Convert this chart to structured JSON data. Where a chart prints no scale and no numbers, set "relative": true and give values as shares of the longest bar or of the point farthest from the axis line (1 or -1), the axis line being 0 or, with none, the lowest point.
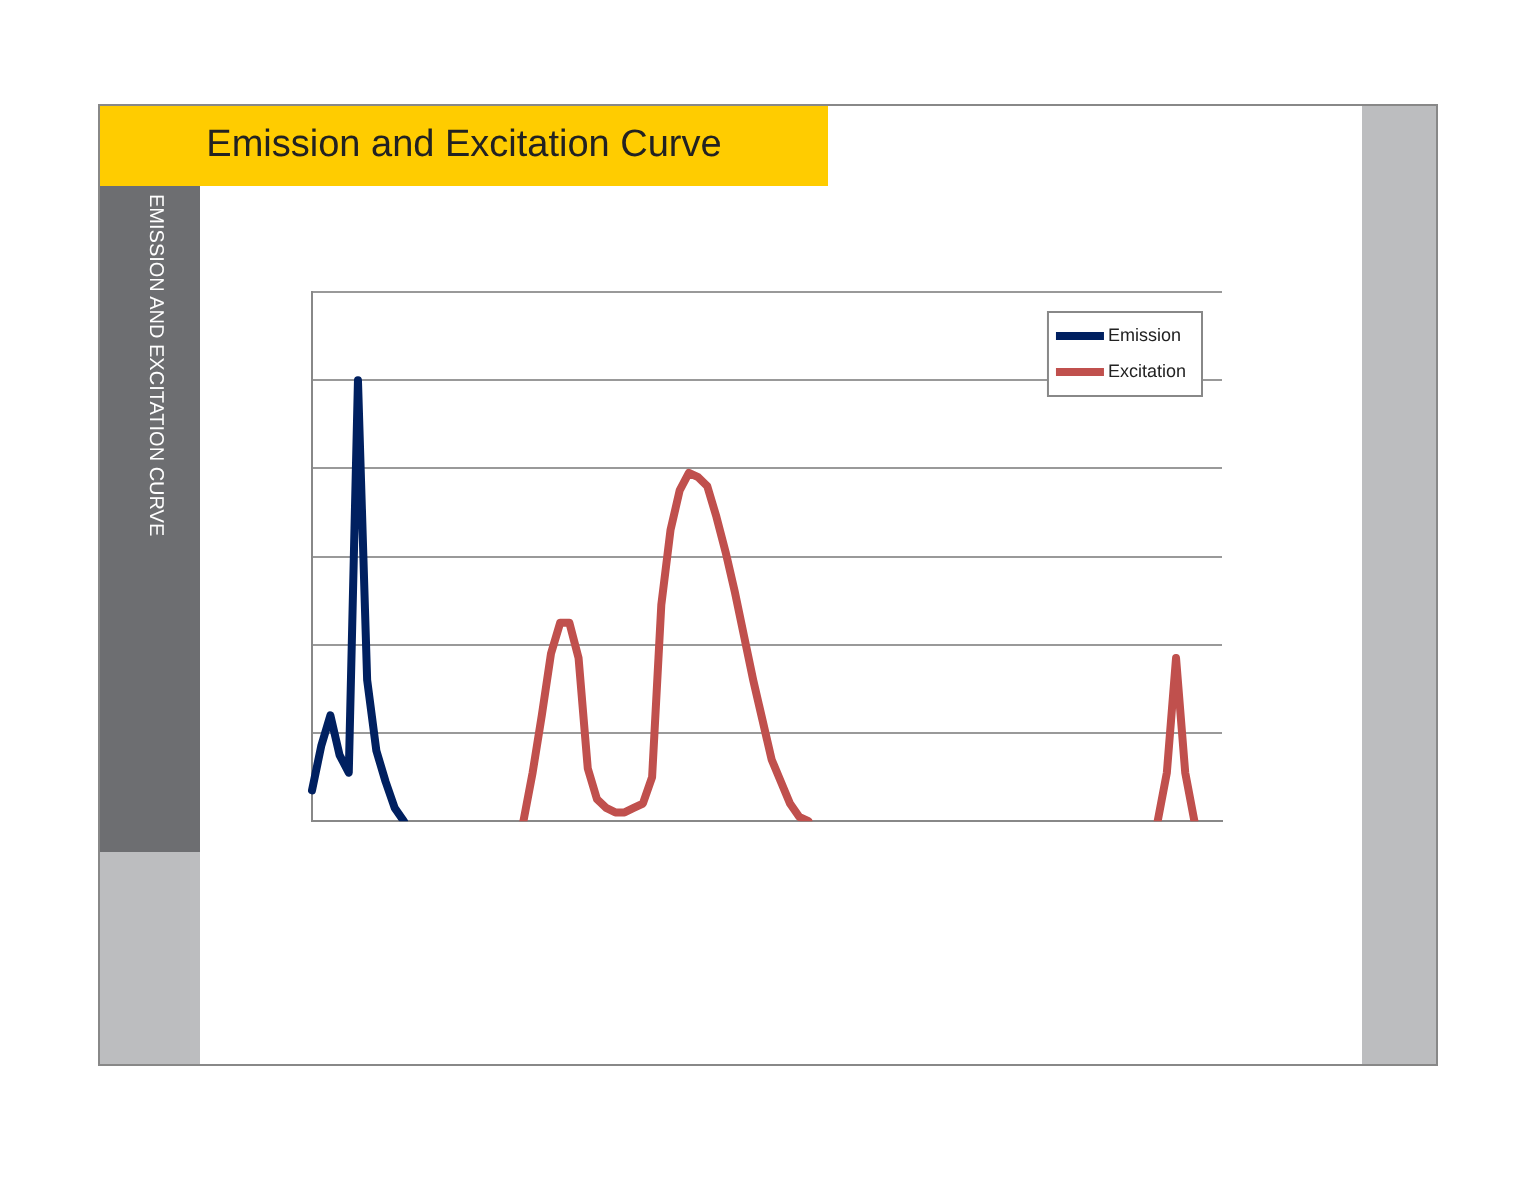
{
  "chart_data": {
    "type": "line",
    "title": "Emission and Excitation Curve",
    "annotations": [
      "EMISSION AND EXCITATION CURVE"
    ],
    "relative": true,
    "grid": "y",
    "legend": "top right",
    "marker": "none",
    "line_style": "solid",
    "categories": [
      null,
      null,
      null,
      null,
      null,
      null,
      null,
      null,
      null,
      null,
      null,
      null,
      null,
      null,
      null,
      null,
      null,
      null,
      null,
      null,
      null,
      null,
      null,
      null,
      null,
      null,
      null,
      null,
      null,
      null,
      null,
      null,
      null,
      null,
      null,
      null,
      null,
      null,
      null,
      null,
      null,
      null,
      null,
      null,
      null,
      null,
      null,
      null,
      null,
      null,
      null,
      null,
      null,
      null,
      null,
      null,
      null,
      null,
      null,
      null,
      null,
      null,
      null,
      null,
      null,
      null,
      null,
      null,
      null,
      null,
      null,
      null,
      null,
      null,
      null,
      null,
      null,
      null,
      null,
      null,
      null,
      null,
      null,
      null,
      null,
      null,
      null,
      null,
      null,
      null,
      null,
      null,
      null,
      null,
      null,
      null,
      null,
      null,
      null,
      null
    ],
    "series": [
      {
        "name": "Emission",
        "color": "#002060",
        "values": [
          0.07,
          0.17,
          0.24,
          0.15,
          0.11,
          1.0,
          0.32,
          0.16,
          0.09,
          0.03,
          0,
          null,
          null,
          null,
          null,
          null,
          null,
          null,
          null,
          null,
          null,
          null,
          null,
          null,
          null,
          null,
          null,
          null,
          null,
          null,
          null,
          null,
          null,
          null,
          null,
          null,
          null,
          null,
          null,
          null,
          null,
          null,
          null,
          null,
          null,
          null,
          null,
          null,
          null,
          null,
          null,
          null,
          null,
          null,
          null,
          null,
          null,
          null,
          null,
          null,
          null,
          null,
          null,
          null,
          null,
          null,
          null,
          null,
          null,
          null,
          null,
          null,
          null,
          null,
          null,
          null,
          null,
          null,
          null,
          null,
          null,
          null,
          null,
          null,
          null,
          null,
          null,
          null,
          null,
          null,
          null,
          null,
          null,
          null,
          null,
          null,
          null,
          null,
          null,
          null
        ]
      },
      {
        "name": "Excitation",
        "color": "#c0504d",
        "values": [
          null,
          null,
          null,
          null,
          null,
          null,
          null,
          null,
          null,
          null,
          null,
          null,
          null,
          null,
          null,
          null,
          null,
          null,
          null,
          null,
          null,
          null,
          null,
          0,
          0.11,
          0.24,
          0.38,
          0.45,
          0.45,
          0.37,
          0.12,
          0.05,
          0.03,
          0.02,
          0.02,
          0.03,
          0.04,
          0.1,
          0.49,
          0.66,
          0.75,
          0.79,
          0.78,
          0.76,
          0.69,
          0.61,
          0.52,
          0.42,
          0.32,
          0.23,
          0.14,
          0.09,
          0.04,
          0.01,
          0,
          null,
          null,
          null,
          null,
          null,
          null,
          null,
          null,
          null,
          null,
          null,
          null,
          null,
          null,
          null,
          null,
          null,
          null,
          null,
          null,
          null,
          null,
          null,
          null,
          null,
          null,
          null,
          null,
          null,
          null,
          null,
          null,
          null,
          null,
          null,
          null,
          null,
          0,
          0.11,
          0.37,
          0.11,
          0,
          null,
          null,
          null
        ]
      }
    ]
  }
}
